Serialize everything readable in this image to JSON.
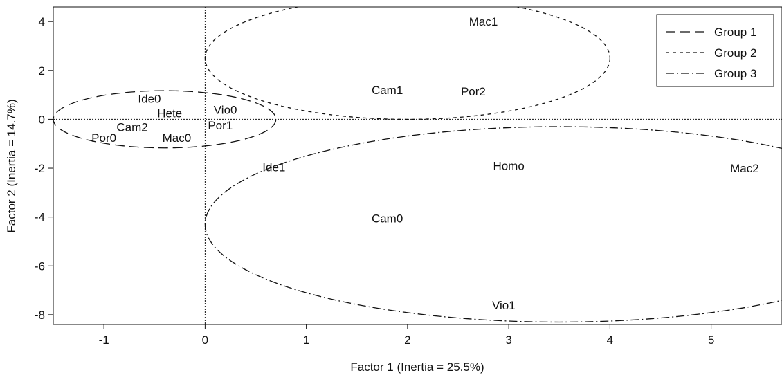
{
  "chart_data": {
    "type": "scatter",
    "title": "",
    "xlabel": "Factor 1 (Inertia = 25.5%)",
    "ylabel": "Factor 2 (Inertia = 14.7%)",
    "xlim": [
      -1.5,
      5.7
    ],
    "ylim": [
      -8.4,
      4.6
    ],
    "xticks": [
      -1,
      0,
      1,
      2,
      3,
      4,
      5
    ],
    "yticks": [
      -8,
      -6,
      -4,
      -2,
      0,
      2,
      4
    ],
    "grid": false,
    "reference_lines": {
      "x": 0,
      "y": 0,
      "style": "dotted"
    },
    "legend_position": "top-right",
    "points": [
      {
        "label": "Mac1",
        "x": 2.75,
        "y": 4.0
      },
      {
        "label": "Cam1",
        "x": 1.8,
        "y": 1.2
      },
      {
        "label": "Por2",
        "x": 2.65,
        "y": 1.15
      },
      {
        "label": "Ide0",
        "x": -0.55,
        "y": 0.85
      },
      {
        "label": "Hete",
        "x": -0.35,
        "y": 0.25
      },
      {
        "label": "Vio0",
        "x": 0.2,
        "y": 0.4
      },
      {
        "label": "Por1",
        "x": 0.15,
        "y": -0.25
      },
      {
        "label": "Cam2",
        "x": -0.72,
        "y": -0.32
      },
      {
        "label": "Por0",
        "x": -1.0,
        "y": -0.75
      },
      {
        "label": "Mac0",
        "x": -0.28,
        "y": -0.75
      },
      {
        "label": "Ide1",
        "x": 0.68,
        "y": -1.95
      },
      {
        "label": "Homo",
        "x": 3.0,
        "y": -1.9
      },
      {
        "label": "Mac2",
        "x": 5.33,
        "y": -2.0
      },
      {
        "label": "Cam0",
        "x": 1.8,
        "y": -4.05
      },
      {
        "label": "Vio1",
        "x": 2.95,
        "y": -7.6
      }
    ],
    "series": [
      {
        "name": "Group 1",
        "dash": "14,7",
        "ellipse": {
          "cx": -0.4,
          "cy": 0,
          "rx": 1.1,
          "ry": 1.17
        }
      },
      {
        "name": "Group 2",
        "dash": "5,5",
        "ellipse": {
          "cx": 2.0,
          "cy": 2.5,
          "rx": 2.0,
          "ry": 2.5
        }
      },
      {
        "name": "Group 3",
        "dash": "12,4,2,4",
        "ellipse": {
          "cx": 3.5,
          "cy": -4.3,
          "rx": 3.5,
          "ry": 4.0
        }
      }
    ]
  }
}
